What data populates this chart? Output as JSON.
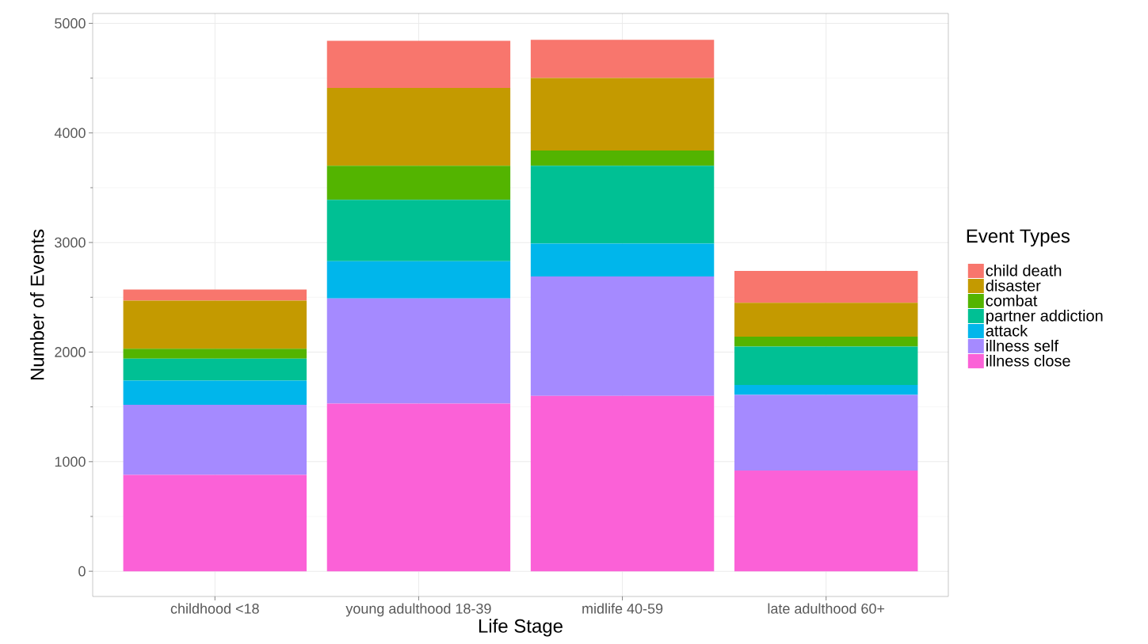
{
  "chart_data": {
    "type": "bar",
    "stacked": true,
    "xlabel": "Life Stage",
    "ylabel": "Number of Events",
    "legend_title": "Event Types",
    "categories": [
      "childhood <18",
      "young adulthood 18-39",
      "midlife 40-59",
      "late adulthood 60+"
    ],
    "series": [
      {
        "name": "illness close",
        "color": "#fb61d7",
        "values": [
          880,
          1530,
          1600,
          920
        ]
      },
      {
        "name": "illness self",
        "color": "#a58aff",
        "values": [
          640,
          960,
          1090,
          690
        ]
      },
      {
        "name": "attack",
        "color": "#00b6eb",
        "values": [
          220,
          340,
          300,
          90
        ]
      },
      {
        "name": "partner addiction",
        "color": "#00c094",
        "values": [
          200,
          560,
          710,
          350
        ]
      },
      {
        "name": "combat",
        "color": "#53b400",
        "values": [
          90,
          310,
          140,
          90
        ]
      },
      {
        "name": "disaster",
        "color": "#c49a00",
        "values": [
          440,
          710,
          660,
          310
        ]
      },
      {
        "name": "child death",
        "color": "#f8766d",
        "values": [
          100,
          430,
          350,
          290
        ]
      }
    ],
    "ylim": [
      -230,
      5090
    ],
    "yticks": [
      0,
      1000,
      2000,
      3000,
      4000,
      5000
    ],
    "grid": true,
    "legend": "right"
  }
}
